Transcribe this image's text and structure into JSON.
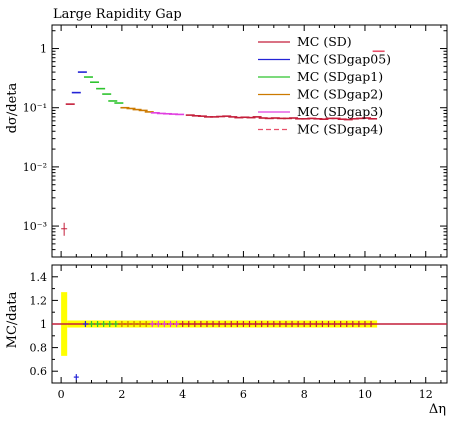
{
  "chart_data": {
    "type": "scatter",
    "title": "Large Rapidity Gap",
    "xlabel": "Δη",
    "ylabel_main": "dσ/deta",
    "ylabel_ratio": "MC/data",
    "xlim": [
      -0.3,
      12.7
    ],
    "ylim_main": [
      0.0003,
      2.5
    ],
    "ylim_ratio": [
      0.5,
      1.5
    ],
    "yscale_main": "log",
    "x_ticks": [
      0,
      2,
      4,
      6,
      8,
      10,
      12
    ],
    "y_ticks_main": [
      {
        "value": 1,
        "label": "1"
      },
      {
        "value": 0.1,
        "label": "10⁻¹"
      },
      {
        "value": 0.01,
        "label": "10⁻²"
      },
      {
        "value": 0.001,
        "label": "10⁻³"
      }
    ],
    "y_ticks_ratio": [
      0.6,
      0.8,
      1,
      1.2,
      1.4
    ],
    "legend": [
      "MC (SD)",
      "MC (SDgap05)",
      "MC (SDgap1)",
      "MC (SDgap2)",
      "MC (SDgap3)",
      "MC (SDgap4)"
    ],
    "legend_position": "top-right",
    "colors": {
      "SD": "#c41e3a",
      "SDgap05": "#2424d6",
      "SDgap1": "#2ec42e",
      "SDgap2": "#cc7a00",
      "SDgap3": "#e040e0",
      "SDgap4": "#e8506a",
      "band": "#ffff00"
    },
    "data_points": {
      "x": [
        0.1
      ],
      "y": [
        0.0009
      ]
    },
    "series": [
      {
        "name": "MC (SD)",
        "x": [
          0.3,
          4.25,
          4.45,
          4.65,
          4.85,
          5.05,
          5.25,
          5.45,
          5.65,
          5.85,
          6.05,
          6.25,
          6.45,
          6.65,
          6.85,
          7.05,
          7.25,
          7.45,
          7.65,
          7.85,
          8.05,
          8.25,
          8.45,
          8.65,
          8.85,
          9.05,
          9.25,
          9.45,
          9.65,
          9.85,
          10.05,
          10.25
        ],
        "y": [
          0.115,
          0.075,
          0.073,
          0.072,
          0.07,
          0.07,
          0.071,
          0.072,
          0.07,
          0.068,
          0.069,
          0.068,
          0.07,
          0.067,
          0.066,
          0.067,
          0.066,
          0.066,
          0.067,
          0.065,
          0.065,
          0.066,
          0.065,
          0.064,
          0.066,
          0.066,
          0.064,
          0.063,
          0.065,
          0.066,
          0.067,
          0.065
        ]
      },
      {
        "name": "MC (SDgap05)",
        "x": [
          0.5,
          0.7
        ],
        "y": [
          0.18,
          0.4
        ]
      },
      {
        "name": "MC (SDgap1)",
        "x": [
          0.9,
          1.1,
          1.3,
          1.5,
          1.7,
          1.9
        ],
        "y": [
          0.33,
          0.27,
          0.21,
          0.17,
          0.13,
          0.12
        ]
      },
      {
        "name": "MC (SDgap2)",
        "x": [
          2.1,
          2.3,
          2.5,
          2.7,
          2.9
        ],
        "y": [
          0.1,
          0.097,
          0.093,
          0.09,
          0.085
        ]
      },
      {
        "name": "MC (SDgap3)",
        "x": [
          3.1,
          3.3,
          3.5,
          3.7,
          3.9
        ],
        "y": [
          0.082,
          0.08,
          0.079,
          0.078,
          0.077
        ]
      },
      {
        "name": "MC (SDgap4)",
        "x": [
          10.45
        ],
        "y": [
          0.9
        ]
      }
    ],
    "ratio": {
      "x": [
        0.5,
        0.8,
        1.0,
        1.2,
        1.4,
        1.6,
        1.8,
        2.0,
        2.2,
        2.4,
        2.6,
        2.8,
        3.0,
        3.2,
        3.4,
        3.6,
        3.8,
        4.0,
        4.2,
        4.4,
        4.6,
        4.8,
        5.0,
        5.2,
        5.4,
        5.6,
        5.8,
        6.0,
        6.2,
        6.4,
        6.6,
        6.8,
        7.0,
        7.2,
        7.4,
        7.6,
        7.8,
        8.0,
        8.2,
        8.4,
        8.6,
        8.8,
        9.0,
        9.2,
        9.4,
        9.6,
        9.8,
        10.0,
        10.2
      ],
      "y": [
        0.55,
        1.0,
        1.0,
        1.0,
        1.0,
        1.0,
        1.0,
        1.0,
        1.0,
        1.0,
        1.0,
        1.0,
        1.0,
        1.0,
        1.0,
        1.0,
        1.0,
        1.0,
        1.0,
        1.0,
        1.0,
        1.0,
        1.0,
        1.0,
        1.0,
        1.0,
        1.0,
        1.0,
        1.0,
        1.0,
        1.0,
        1.0,
        1.0,
        1.0,
        1.0,
        1.0,
        1.0,
        1.0,
        1.0,
        1.0,
        1.0,
        1.0,
        1.0,
        1.0,
        1.0,
        1.0,
        1.0,
        1.0,
        1.0
      ],
      "band_first": {
        "x": [
          0.0,
          0.2
        ],
        "y": [
          0.73,
          1.27
        ]
      },
      "band_rest": {
        "x": [
          0.2,
          10.4
        ],
        "y": [
          0.97,
          1.03
        ]
      }
    }
  }
}
